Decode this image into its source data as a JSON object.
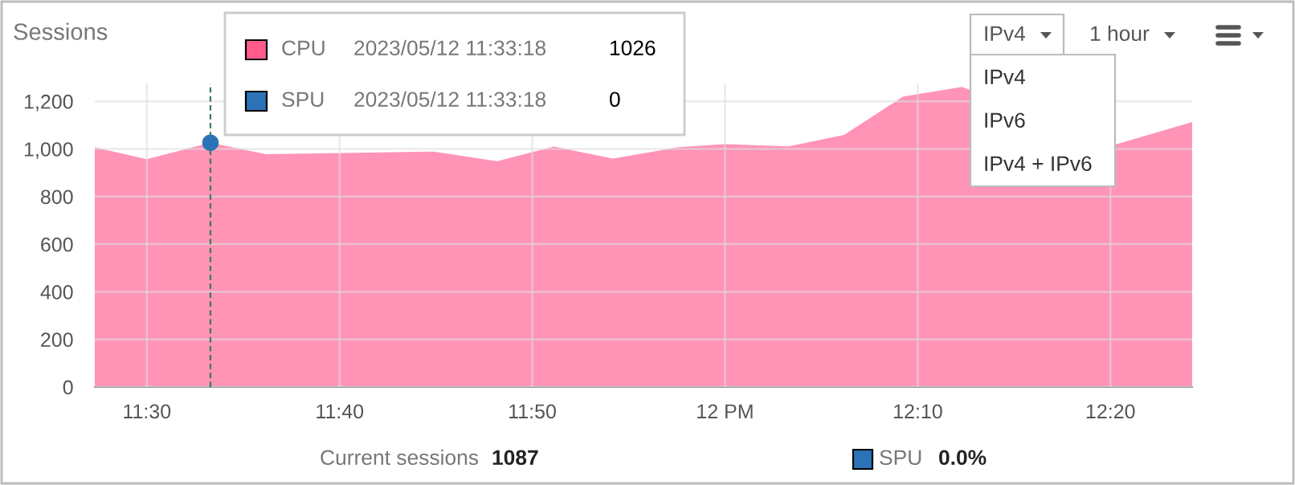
{
  "chart_data": {
    "type": "area",
    "title": "Sessions",
    "series": [
      {
        "color": "#ff94b7",
        "x": [
          11.455,
          11.5,
          11.555,
          11.603,
          11.748,
          11.803,
          11.852,
          11.903,
          11.96,
          12.0,
          12.055,
          12.103,
          12.154,
          12.205,
          12.337,
          12.404
        ],
        "values": [
          1007,
          957,
          1026,
          978,
          989,
          949,
          1010,
          960,
          1008,
          1020,
          1011,
          1059,
          1220,
          1261,
          1018,
          1113
        ]
      },
      {
        "type": "scatter",
        "marker": "circle",
        "color": "#2b73b6",
        "x": [
          11.555
        ],
        "values": [
          1026
        ]
      }
    ],
    "xlim": [
      11.455,
      12.404
    ],
    "xticks": [
      {
        "value": 11.5,
        "label": "11:30"
      },
      {
        "value": 11.6667,
        "label": "11:40"
      },
      {
        "value": 11.8333,
        "label": "11:50"
      },
      {
        "value": 12.0,
        "label": "12 PM"
      },
      {
        "value": 12.1667,
        "label": "12:10"
      },
      {
        "value": 12.3333,
        "label": "12:20"
      }
    ],
    "ylim": [
      0,
      1275
    ],
    "yticks": [
      {
        "value": 0,
        "label": "0"
      },
      {
        "value": 200,
        "label": "200"
      },
      {
        "value": 400,
        "label": "400"
      },
      {
        "value": 600,
        "label": "600"
      },
      {
        "value": 800,
        "label": "800"
      },
      {
        "value": 1000,
        "label": "1,000"
      },
      {
        "value": 1200,
        "label": "1,200"
      }
    ],
    "grid": true,
    "ref_lines": [
      {
        "axis": "x",
        "value": 11.555,
        "color": "#3a7d5a",
        "line_style": "dashed"
      }
    ],
    "annotations": [
      "CPU",
      "2023/05/12 11:33:18",
      "1026",
      "SPU",
      "2023/05/12 11:33:18",
      "0",
      "Current sessions",
      "1087",
      "SPU",
      "0.0%",
      "IPv4",
      "1 hour",
      "IPv4",
      "IPv6",
      "IPv4 + IPv6"
    ]
  }
}
